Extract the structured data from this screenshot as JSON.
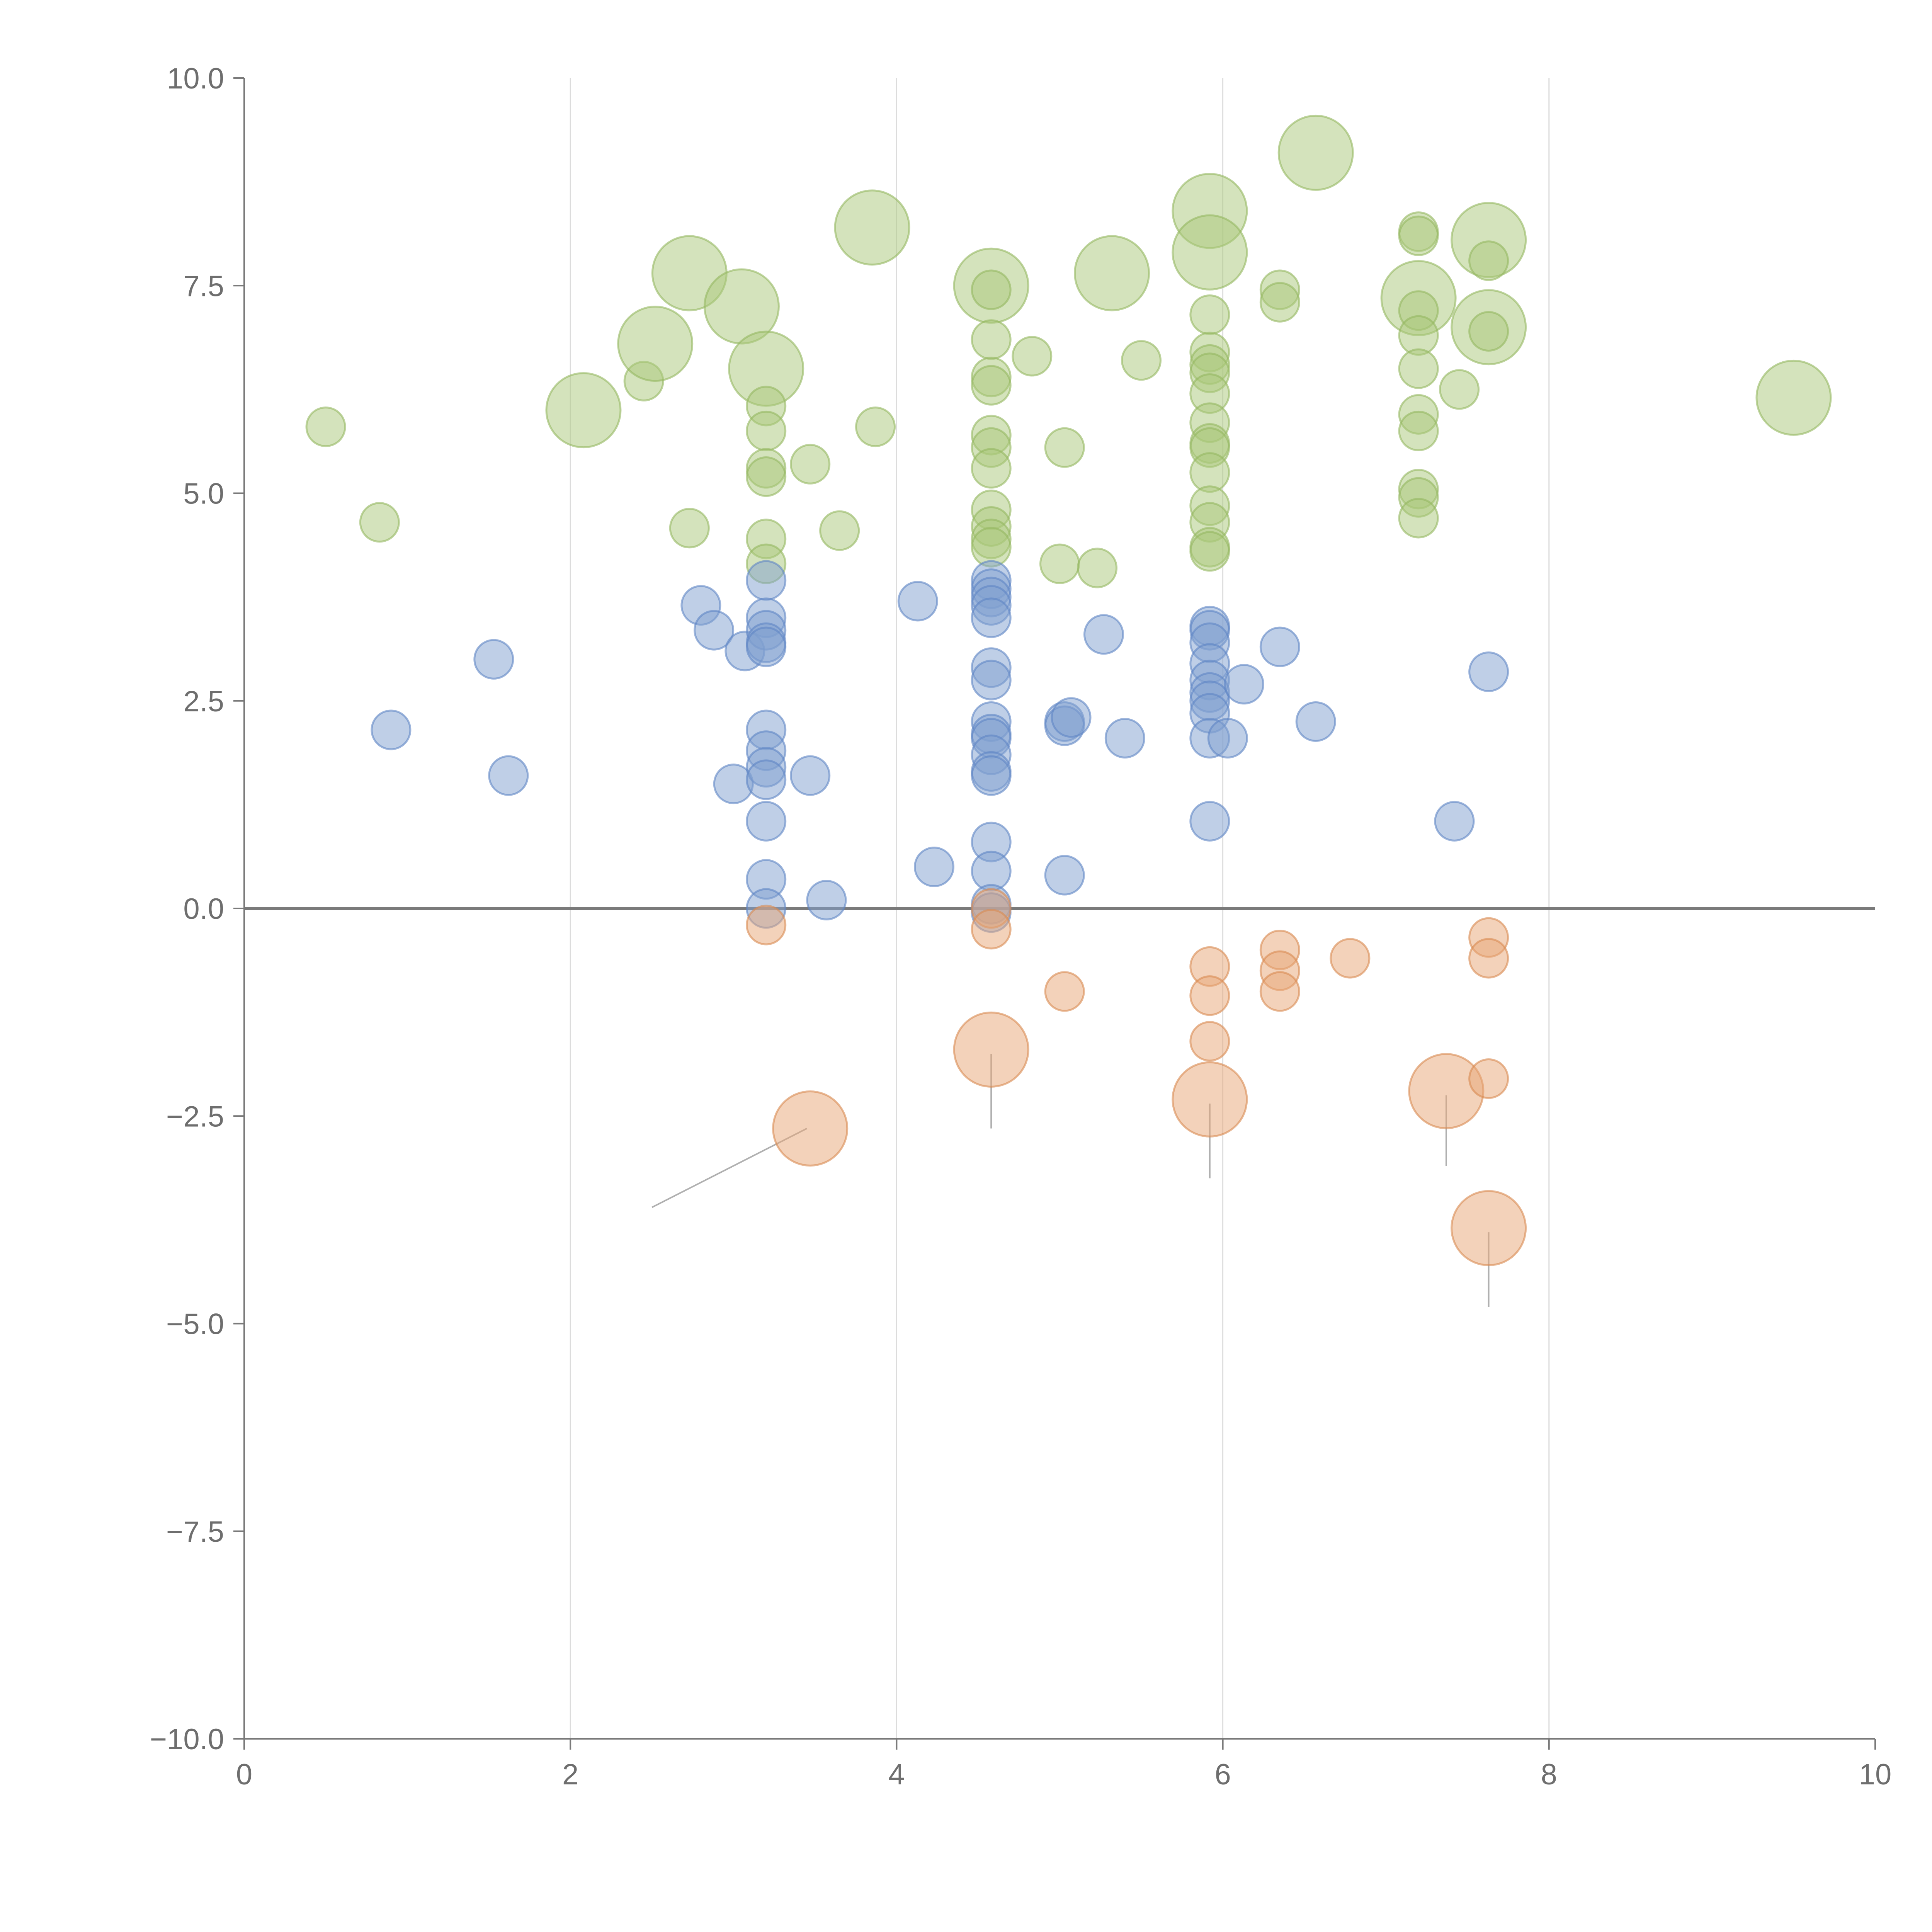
{
  "chart_data": {
    "type": "scatter",
    "title": "",
    "xlabel": "",
    "ylabel": "",
    "xlim": [
      0,
      10
    ],
    "ylim": [
      -10,
      10
    ],
    "x_ticks": [
      0,
      2,
      4,
      6,
      8,
      10
    ],
    "x_tick_labels": [
      "0",
      "2",
      "4",
      "6",
      "8",
      "10"
    ],
    "y_ticks": [
      10,
      7.5,
      5,
      2.5,
      0,
      -2.5,
      -5,
      -7.5,
      -10
    ],
    "y_tick_labels": [
      "10.0",
      "7.5",
      "5.0",
      "2.5",
      "0.0",
      "−2.5",
      "−5.0",
      "−7.5",
      "−10.0"
    ],
    "vertical_grid": true,
    "zero_line": true,
    "series": [
      {
        "name": "green",
        "color": "#a9c77a",
        "stroke": "#94b860",
        "points": [
          {
            "x": 0.5,
            "y": 5.8,
            "s": "small"
          },
          {
            "x": 0.83,
            "y": 4.65,
            "s": "small"
          },
          {
            "x": 2.08,
            "y": 6.0,
            "s": "large"
          },
          {
            "x": 2.45,
            "y": 6.35,
            "s": "small"
          },
          {
            "x": 2.52,
            "y": 6.8,
            "s": "large"
          },
          {
            "x": 2.73,
            "y": 7.65,
            "s": "large"
          },
          {
            "x": 2.73,
            "y": 4.58,
            "s": "small"
          },
          {
            "x": 3.05,
            "y": 7.25,
            "s": "large"
          },
          {
            "x": 3.2,
            "y": 6.5,
            "s": "large"
          },
          {
            "x": 3.2,
            "y": 6.05,
            "s": "small"
          },
          {
            "x": 3.2,
            "y": 5.75,
            "s": "small"
          },
          {
            "x": 3.2,
            "y": 5.3,
            "s": "small"
          },
          {
            "x": 3.2,
            "y": 5.2,
            "s": "small"
          },
          {
            "x": 3.2,
            "y": 4.45,
            "s": "small"
          },
          {
            "x": 3.2,
            "y": 4.15,
            "s": "small"
          },
          {
            "x": 3.47,
            "y": 5.35,
            "s": "small"
          },
          {
            "x": 3.65,
            "y": 4.55,
            "s": "small"
          },
          {
            "x": 3.85,
            "y": 8.2,
            "s": "large"
          },
          {
            "x": 3.87,
            "y": 5.8,
            "s": "small"
          },
          {
            "x": 4.58,
            "y": 7.5,
            "s": "large"
          },
          {
            "x": 4.58,
            "y": 7.45,
            "s": "small"
          },
          {
            "x": 4.58,
            "y": 6.85,
            "s": "small"
          },
          {
            "x": 4.58,
            "y": 6.4,
            "s": "small"
          },
          {
            "x": 4.58,
            "y": 6.3,
            "s": "small"
          },
          {
            "x": 4.58,
            "y": 5.7,
            "s": "small"
          },
          {
            "x": 4.58,
            "y": 5.55,
            "s": "small"
          },
          {
            "x": 4.58,
            "y": 5.3,
            "s": "small"
          },
          {
            "x": 4.58,
            "y": 4.8,
            "s": "small"
          },
          {
            "x": 4.58,
            "y": 4.6,
            "s": "small"
          },
          {
            "x": 4.58,
            "y": 4.45,
            "s": "small"
          },
          {
            "x": 4.58,
            "y": 4.35,
            "s": "small"
          },
          {
            "x": 4.83,
            "y": 6.65,
            "s": "small"
          },
          {
            "x": 5.0,
            "y": 4.15,
            "s": "small"
          },
          {
            "x": 5.03,
            "y": 5.55,
            "s": "small"
          },
          {
            "x": 5.23,
            "y": 4.1,
            "s": "small"
          },
          {
            "x": 5.32,
            "y": 7.65,
            "s": "large"
          },
          {
            "x": 5.5,
            "y": 6.6,
            "s": "small"
          },
          {
            "x": 5.92,
            "y": 8.4,
            "s": "large"
          },
          {
            "x": 5.92,
            "y": 7.9,
            "s": "large"
          },
          {
            "x": 5.92,
            "y": 7.15,
            "s": "small"
          },
          {
            "x": 5.92,
            "y": 6.7,
            "s": "small"
          },
          {
            "x": 5.92,
            "y": 6.55,
            "s": "small"
          },
          {
            "x": 5.92,
            "y": 6.45,
            "s": "small"
          },
          {
            "x": 5.92,
            "y": 6.2,
            "s": "small"
          },
          {
            "x": 5.92,
            "y": 5.85,
            "s": "small"
          },
          {
            "x": 5.92,
            "y": 5.6,
            "s": "small"
          },
          {
            "x": 5.92,
            "y": 5.55,
            "s": "small"
          },
          {
            "x": 5.92,
            "y": 5.25,
            "s": "small"
          },
          {
            "x": 5.92,
            "y": 4.85,
            "s": "small"
          },
          {
            "x": 5.92,
            "y": 4.65,
            "s": "small"
          },
          {
            "x": 5.92,
            "y": 4.35,
            "s": "small"
          },
          {
            "x": 5.92,
            "y": 4.3,
            "s": "small"
          },
          {
            "x": 6.35,
            "y": 7.45,
            "s": "small"
          },
          {
            "x": 6.35,
            "y": 7.3,
            "s": "small"
          },
          {
            "x": 6.57,
            "y": 9.1,
            "s": "large"
          },
          {
            "x": 7.2,
            "y": 8.15,
            "s": "small"
          },
          {
            "x": 7.2,
            "y": 8.1,
            "s": "small"
          },
          {
            "x": 7.2,
            "y": 7.35,
            "s": "large"
          },
          {
            "x": 7.2,
            "y": 7.2,
            "s": "small"
          },
          {
            "x": 7.2,
            "y": 6.9,
            "s": "small"
          },
          {
            "x": 7.2,
            "y": 6.5,
            "s": "small"
          },
          {
            "x": 7.2,
            "y": 5.95,
            "s": "small"
          },
          {
            "x": 7.2,
            "y": 5.75,
            "s": "small"
          },
          {
            "x": 7.2,
            "y": 5.05,
            "s": "small"
          },
          {
            "x": 7.2,
            "y": 4.95,
            "s": "small"
          },
          {
            "x": 7.2,
            "y": 4.7,
            "s": "small"
          },
          {
            "x": 7.45,
            "y": 6.25,
            "s": "small"
          },
          {
            "x": 7.63,
            "y": 8.05,
            "s": "large"
          },
          {
            "x": 7.63,
            "y": 7.8,
            "s": "small"
          },
          {
            "x": 7.63,
            "y": 7.0,
            "s": "large"
          },
          {
            "x": 7.63,
            "y": 6.95,
            "s": "small"
          },
          {
            "x": 9.5,
            "y": 6.15,
            "s": "large"
          }
        ]
      },
      {
        "name": "blue",
        "color": "#7f9fd0",
        "stroke": "#5f86c4",
        "points": [
          {
            "x": 0.9,
            "y": 2.15,
            "s": "small"
          },
          {
            "x": 1.53,
            "y": 3.0,
            "s": "small"
          },
          {
            "x": 1.62,
            "y": 1.6,
            "s": "small"
          },
          {
            "x": 2.8,
            "y": 3.65,
            "s": "small"
          },
          {
            "x": 2.88,
            "y": 3.35,
            "s": "small"
          },
          {
            "x": 3.0,
            "y": 1.5,
            "s": "small"
          },
          {
            "x": 3.07,
            "y": 3.1,
            "s": "small"
          },
          {
            "x": 3.2,
            "y": 3.95,
            "s": "small"
          },
          {
            "x": 3.2,
            "y": 3.5,
            "s": "small"
          },
          {
            "x": 3.2,
            "y": 3.35,
            "s": "small"
          },
          {
            "x": 3.2,
            "y": 3.2,
            "s": "small"
          },
          {
            "x": 3.2,
            "y": 3.15,
            "s": "small"
          },
          {
            "x": 3.2,
            "y": 2.15,
            "s": "small"
          },
          {
            "x": 3.2,
            "y": 1.9,
            "s": "small"
          },
          {
            "x": 3.2,
            "y": 1.7,
            "s": "small"
          },
          {
            "x": 3.2,
            "y": 1.55,
            "s": "small"
          },
          {
            "x": 3.2,
            "y": 1.05,
            "s": "small"
          },
          {
            "x": 3.2,
            "y": 0.35,
            "s": "small"
          },
          {
            "x": 3.2,
            "y": 0.0,
            "s": "small"
          },
          {
            "x": 3.47,
            "y": 1.6,
            "s": "small"
          },
          {
            "x": 3.57,
            "y": 0.1,
            "s": "small"
          },
          {
            "x": 4.13,
            "y": 3.7,
            "s": "small"
          },
          {
            "x": 4.23,
            "y": 0.5,
            "s": "small"
          },
          {
            "x": 4.58,
            "y": 3.95,
            "s": "small"
          },
          {
            "x": 4.58,
            "y": 3.85,
            "s": "small"
          },
          {
            "x": 4.58,
            "y": 3.75,
            "s": "small"
          },
          {
            "x": 4.58,
            "y": 3.65,
            "s": "small"
          },
          {
            "x": 4.58,
            "y": 3.5,
            "s": "small"
          },
          {
            "x": 4.58,
            "y": 2.9,
            "s": "small"
          },
          {
            "x": 4.58,
            "y": 2.75,
            "s": "small"
          },
          {
            "x": 4.58,
            "y": 2.25,
            "s": "small"
          },
          {
            "x": 4.58,
            "y": 2.1,
            "s": "small"
          },
          {
            "x": 4.58,
            "y": 2.05,
            "s": "small"
          },
          {
            "x": 4.58,
            "y": 1.85,
            "s": "small"
          },
          {
            "x": 4.58,
            "y": 1.65,
            "s": "small"
          },
          {
            "x": 4.58,
            "y": 1.6,
            "s": "small"
          },
          {
            "x": 4.58,
            "y": 0.8,
            "s": "small"
          },
          {
            "x": 4.58,
            "y": 0.45,
            "s": "small"
          },
          {
            "x": 4.58,
            "y": 0.05,
            "s": "small"
          },
          {
            "x": 4.58,
            "y": -0.05,
            "s": "small"
          },
          {
            "x": 5.03,
            "y": 2.25,
            "s": "small"
          },
          {
            "x": 5.03,
            "y": 2.2,
            "s": "small"
          },
          {
            "x": 5.07,
            "y": 2.3,
            "s": "small"
          },
          {
            "x": 5.03,
            "y": 0.4,
            "s": "small"
          },
          {
            "x": 5.27,
            "y": 3.3,
            "s": "small"
          },
          {
            "x": 5.4,
            "y": 2.05,
            "s": "small"
          },
          {
            "x": 5.92,
            "y": 3.4,
            "s": "small"
          },
          {
            "x": 5.92,
            "y": 3.35,
            "s": "small"
          },
          {
            "x": 5.92,
            "y": 3.2,
            "s": "small"
          },
          {
            "x": 5.92,
            "y": 2.95,
            "s": "small"
          },
          {
            "x": 5.92,
            "y": 2.75,
            "s": "small"
          },
          {
            "x": 5.92,
            "y": 2.6,
            "s": "small"
          },
          {
            "x": 5.92,
            "y": 2.5,
            "s": "small"
          },
          {
            "x": 5.92,
            "y": 2.35,
            "s": "small"
          },
          {
            "x": 5.92,
            "y": 2.05,
            "s": "small"
          },
          {
            "x": 5.92,
            "y": 1.05,
            "s": "small"
          },
          {
            "x": 6.03,
            "y": 2.05,
            "s": "small"
          },
          {
            "x": 6.13,
            "y": 2.7,
            "s": "small"
          },
          {
            "x": 6.35,
            "y": 3.15,
            "s": "small"
          },
          {
            "x": 6.57,
            "y": 2.25,
            "s": "small"
          },
          {
            "x": 7.42,
            "y": 1.05,
            "s": "small"
          },
          {
            "x": 7.63,
            "y": 2.85,
            "s": "small"
          }
        ]
      },
      {
        "name": "orange",
        "color": "#e8a675",
        "stroke": "#d98a52",
        "points": [
          {
            "x": 3.2,
            "y": -0.2,
            "s": "small"
          },
          {
            "x": 3.47,
            "y": -2.65,
            "s": "large"
          },
          {
            "x": 4.58,
            "y": 0.0,
            "s": "small"
          },
          {
            "x": 4.58,
            "y": -0.25,
            "s": "small"
          },
          {
            "x": 4.58,
            "y": -1.7,
            "s": "large"
          },
          {
            "x": 5.03,
            "y": -1.0,
            "s": "small"
          },
          {
            "x": 5.92,
            "y": -0.7,
            "s": "small"
          },
          {
            "x": 5.92,
            "y": -1.05,
            "s": "small"
          },
          {
            "x": 5.92,
            "y": -1.6,
            "s": "small"
          },
          {
            "x": 5.92,
            "y": -2.3,
            "s": "large"
          },
          {
            "x": 6.35,
            "y": -0.5,
            "s": "small"
          },
          {
            "x": 6.35,
            "y": -0.75,
            "s": "small"
          },
          {
            "x": 6.35,
            "y": -1.0,
            "s": "small"
          },
          {
            "x": 6.78,
            "y": -0.6,
            "s": "small"
          },
          {
            "x": 7.37,
            "y": -2.2,
            "s": "large"
          },
          {
            "x": 7.63,
            "y": -0.35,
            "s": "small"
          },
          {
            "x": 7.63,
            "y": -0.6,
            "s": "small"
          },
          {
            "x": 7.63,
            "y": -2.05,
            "s": "small"
          },
          {
            "x": 7.63,
            "y": -3.85,
            "s": "large"
          }
        ]
      }
    ],
    "leader_lines": [
      {
        "from": [
          3.45,
          -2.65
        ],
        "to": [
          2.5,
          -3.6
        ]
      },
      {
        "from": [
          4.58,
          -1.75
        ],
        "to": [
          4.58,
          -2.65
        ]
      },
      {
        "from": [
          5.92,
          -2.35
        ],
        "to": [
          5.92,
          -3.25
        ]
      },
      {
        "from": [
          7.37,
          -2.25
        ],
        "to": [
          7.37,
          -3.1
        ]
      },
      {
        "from": [
          7.63,
          -3.9
        ],
        "to": [
          7.63,
          -4.8
        ]
      }
    ]
  }
}
